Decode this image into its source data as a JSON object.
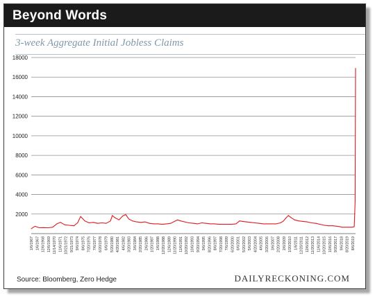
{
  "header": {
    "title": "Beyond Words"
  },
  "chart_data": {
    "type": "line",
    "title": "3-week Aggregate Initial Jobless Claims",
    "xlabel": "",
    "ylabel": "",
    "ylim": [
      0,
      18000
    ],
    "yticks": [
      2000,
      4000,
      6000,
      8000,
      10000,
      12000,
      14000,
      16000,
      18000
    ],
    "grid": "horizontal",
    "legend": "none",
    "line_color": "#e0171f",
    "xtick_labels": [
      "1/6/1967",
      "1/6/1967",
      "12/6/1968",
      "12/6/1969",
      "11/14/1970",
      "11/6/1971",
      "10/21/1972",
      "9/21/1973",
      "9/6/1974",
      "8/6/1975",
      "7/20/1976",
      "7/6/1977",
      "6/20/1978",
      "6/6/1979",
      "5/20/1980",
      "4/20/1981",
      "4/6/1982",
      "3/20/1983",
      "3/6/1984",
      "2/20/1985",
      "2/6/1986",
      "1/20/1987",
      "1/6/1988",
      "12/20/1988",
      "12/6/1989",
      "11/20/1990",
      "11/6/1991",
      "10/20/1992",
      "10/6/1993",
      "9/20/1994",
      "9/6/1995",
      "8/20/1996",
      "8/6/1997",
      "7/20/1998",
      "7/6/1999",
      "6/20/2000",
      "6/6/2001",
      "5/20/2002",
      "5/6/2003",
      "4/20/2004",
      "4/6/2005",
      "3/20/2006",
      "3/6/2007",
      "2/20/2008",
      "2/6/2009",
      "1/20/2010",
      "1/6/2011",
      "12/20/2011",
      "12/6/2012",
      "11/20/2013",
      "11/6/2014",
      "10/20/2015",
      "10/6/2016",
      "9/20/2017",
      "9/6/2018",
      "8/20/2019",
      "8/6/2019"
    ],
    "x": [
      1967.0,
      1967.6,
      1968.3,
      1969.0,
      1969.8,
      1970.5,
      1971.2,
      1971.8,
      1972.5,
      1973.2,
      1974.0,
      1974.6,
      1975.1,
      1975.8,
      1976.5,
      1977.2,
      1977.9,
      1978.6,
      1979.3,
      1980.0,
      1980.3,
      1980.8,
      1981.4,
      1982.0,
      1982.5,
      1983.0,
      1983.6,
      1984.3,
      1985.0,
      1985.7,
      1986.4,
      1987.1,
      1987.8,
      1988.5,
      1989.2,
      1989.9,
      1990.5,
      1991.0,
      1991.5,
      1992.2,
      1992.9,
      1993.6,
      1994.3,
      1995.0,
      1995.7,
      1996.4,
      1997.1,
      1997.8,
      1998.5,
      1999.2,
      1999.9,
      2000.6,
      2001.2,
      2001.7,
      2002.3,
      2003.0,
      2003.7,
      2004.4,
      2005.1,
      2005.8,
      2006.5,
      2007.2,
      2007.9,
      2008.4,
      2008.8,
      2009.2,
      2009.6,
      2010.2,
      2010.9,
      2011.6,
      2012.3,
      2013.0,
      2013.7,
      2014.4,
      2015.1,
      2015.8,
      2016.5,
      2017.2,
      2017.7,
      2018.0,
      2018.5,
      2019.0,
      2019.6,
      2020.0,
      2020.15,
      2020.22
    ],
    "values": [
      500,
      750,
      600,
      620,
      600,
      650,
      1000,
      1150,
      900,
      850,
      800,
      1100,
      1750,
      1300,
      1100,
      1150,
      1050,
      1100,
      1050,
      1300,
      1850,
      1600,
      1400,
      1800,
      1950,
      1500,
      1300,
      1200,
      1150,
      1200,
      1050,
      1000,
      1000,
      950,
      1000,
      1050,
      1250,
      1400,
      1300,
      1200,
      1100,
      1050,
      1000,
      1100,
      1050,
      1000,
      1000,
      950,
      950,
      950,
      950,
      1000,
      1300,
      1250,
      1200,
      1150,
      1100,
      1050,
      1000,
      1000,
      1000,
      1000,
      1100,
      1300,
      1600,
      1850,
      1650,
      1400,
      1300,
      1250,
      1200,
      1100,
      1050,
      950,
      850,
      800,
      800,
      750,
      700,
      650,
      650,
      650,
      650,
      700,
      3300,
      16900
    ]
  },
  "footer": {
    "source": "Source: Bloomberg, Zero Hedge",
    "brand": "DAILYRECKONING.COM"
  }
}
